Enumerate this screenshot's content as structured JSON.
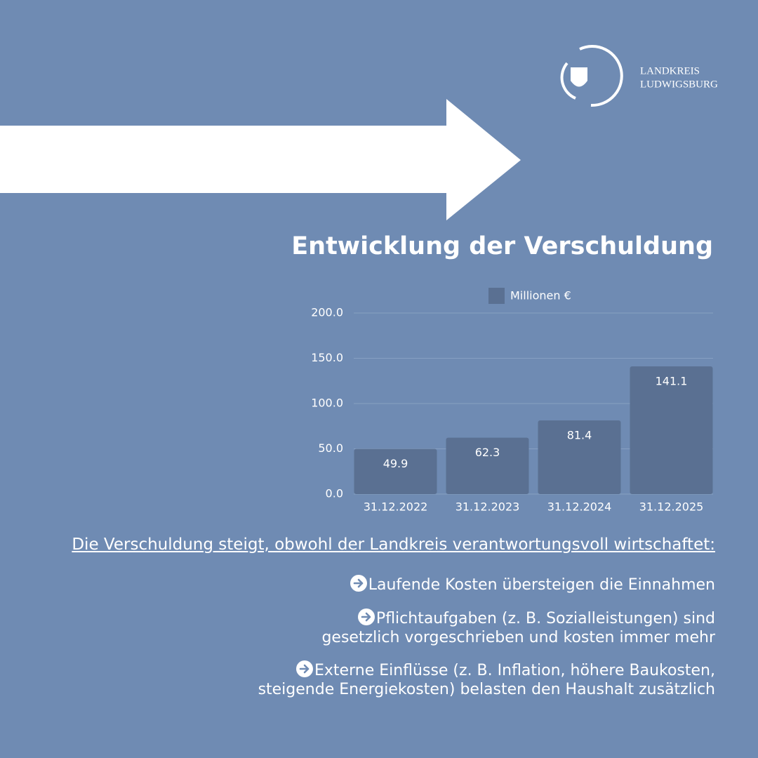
{
  "logo": {
    "line1": "LANDKREIS",
    "line2": "LUDWIGSBURG"
  },
  "chart_data": {
    "type": "bar",
    "title": "Entwicklung der Verschuldung",
    "categories": [
      "31.12.2022",
      "31.12.2023",
      "31.12.2024",
      "31.12.2025"
    ],
    "series": [
      {
        "name": "Millionen €",
        "color": "#5a7092",
        "values": [
          49.9,
          62.3,
          81.4,
          141.1
        ]
      }
    ],
    "ylim": [
      0,
      200
    ],
    "yticks": [
      {
        "value": 0,
        "label": "0.0"
      },
      {
        "value": 50,
        "label": "50.0"
      },
      {
        "value": 100,
        "label": "100.0"
      },
      {
        "value": 150,
        "label": "150.0"
      },
      {
        "value": 200,
        "label": "200.0"
      }
    ],
    "grid": true,
    "legend": "top"
  },
  "text": {
    "heading": "Die Verschuldung steigt, obwohl der Landkreis verantwortungsvoll wirtschaftet:",
    "bullets": [
      [
        "Laufende Kosten übersteigen die Einnahmen"
      ],
      [
        "Pflichtaufgaben (z. B. Sozialleistungen) sind",
        "gesetzlich vorgeschrieben und kosten immer mehr"
      ],
      [
        "Externe Einflüsse (z. B. Inflation, höhere Baukosten,",
        "steigende Energiekosten) belasten den Haushalt zusätzlich"
      ]
    ]
  }
}
